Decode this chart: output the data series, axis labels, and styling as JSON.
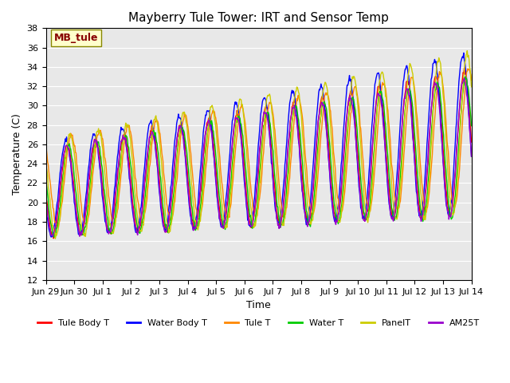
{
  "title": "Mayberry Tule Tower: IRT and Sensor Temp",
  "xlabel": "Time",
  "ylabel": "Temperature (C)",
  "ylim": [
    12,
    38
  ],
  "yticks": [
    12,
    14,
    16,
    18,
    20,
    22,
    24,
    26,
    28,
    30,
    32,
    34,
    36,
    38
  ],
  "bg_color": "#e8e8e8",
  "fig_color": "#ffffff",
  "label_box_text": "MB_tule",
  "label_box_color": "#ffffcc",
  "label_box_edge": "#888800",
  "label_box_text_color": "#880000",
  "series": [
    {
      "label": "Tule Body T",
      "color": "#ff0000"
    },
    {
      "label": "Water Body T",
      "color": "#0000ff"
    },
    {
      "label": "Tule T",
      "color": "#ff8800"
    },
    {
      "label": "Water T",
      "color": "#00cc00"
    },
    {
      "label": "PanelT",
      "color": "#cccc00"
    },
    {
      "label": "AM25T",
      "color": "#9900cc"
    }
  ],
  "xtick_labels": [
    "Jun 29",
    "Jun 30",
    "Jul 1",
    "Jul 2",
    "Jul 3",
    "Jul 4",
    "Jul 5",
    "Jul 6",
    "Jul 7",
    "Jul 8",
    "Jul 9",
    "Jul 10",
    "Jul 11",
    "Jul 12",
    "Jul 13",
    "Jul 14"
  ],
  "n_days": 15,
  "pts_per_day": 48,
  "base_min": [
    16.5,
    16.5,
    17.5,
    16.5,
    16.5,
    16.5
  ],
  "base_amp": [
    9.0,
    9.5,
    9.0,
    9.0,
    10.0,
    9.0
  ],
  "trend": [
    1.0,
    1.1,
    0.9,
    0.9,
    1.0,
    0.9
  ],
  "phase_offset": [
    0.0,
    0.05,
    -0.15,
    -0.05,
    -0.1,
    0.02
  ],
  "line_width": 1.0
}
